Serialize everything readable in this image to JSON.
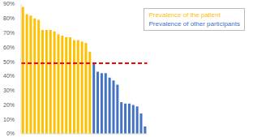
{
  "chart_data": {
    "type": "bar",
    "categories": [
      null,
      null,
      null,
      null,
      null,
      null,
      null,
      null,
      null,
      null,
      null,
      null,
      null,
      null,
      null,
      null,
      null,
      null,
      null,
      null,
      null,
      null,
      null,
      null,
      null,
      null,
      null,
      null,
      null,
      null,
      null,
      null
    ],
    "series": [
      {
        "name": "Prevalence of the patient",
        "color": "#FFC000",
        "values": [
          88,
          83,
          82,
          80,
          79,
          72,
          72,
          72,
          71,
          69,
          68,
          67,
          67,
          65,
          65,
          64,
          63,
          57,
          null,
          null,
          null,
          null,
          null,
          null,
          null,
          null,
          null,
          null,
          null,
          null,
          null,
          null
        ]
      },
      {
        "name": "Prevalence of other participants",
        "color": "#4472C4",
        "values": [
          null,
          null,
          null,
          null,
          null,
          null,
          null,
          null,
          null,
          null,
          null,
          null,
          null,
          null,
          null,
          null,
          null,
          null,
          49,
          43,
          42,
          42,
          39,
          37,
          34,
          22,
          21,
          21,
          20,
          19,
          14,
          5
        ]
      }
    ],
    "threshold": 49,
    "threshold_color": "#FF0000",
    "threshold_line_style": "dashed",
    "ylim": [
      0,
      90
    ],
    "yticks": [
      {
        "value": 0,
        "label": "0%"
      },
      {
        "value": 10,
        "label": "10%"
      },
      {
        "value": 20,
        "label": "20%"
      },
      {
        "value": 30,
        "label": "30%"
      },
      {
        "value": 40,
        "label": "40%"
      },
      {
        "value": 50,
        "label": "50%"
      },
      {
        "value": 60,
        "label": "60%"
      },
      {
        "value": 70,
        "label": "70%"
      },
      {
        "value": 80,
        "label": "80%"
      },
      {
        "value": 90,
        "label": "90%"
      }
    ],
    "grid": false,
    "legend": "upper right",
    "tick_labels": "y"
  }
}
